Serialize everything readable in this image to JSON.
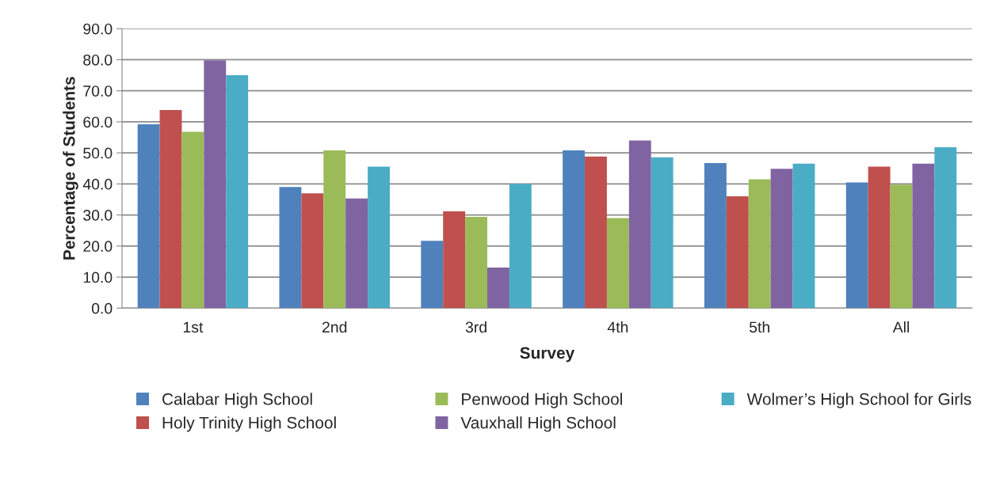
{
  "chart_data": {
    "type": "bar",
    "xlabel": "Survey",
    "ylabel": "Percentage of Students",
    "categories": [
      "1st",
      "2nd",
      "3rd",
      "4th",
      "5th",
      "All"
    ],
    "series": [
      {
        "name": "Calabar High School",
        "color": "#4f81bd",
        "values": [
          59.2,
          39.0,
          21.7,
          50.8,
          46.7,
          40.5
        ]
      },
      {
        "name": "Holy Trinity High School",
        "color": "#c0504d",
        "values": [
          63.8,
          37.0,
          31.2,
          48.8,
          36.0,
          45.6
        ]
      },
      {
        "name": "Penwood High School",
        "color": "#9bbb59",
        "values": [
          56.8,
          50.8,
          29.4,
          29.0,
          41.5,
          39.8
        ]
      },
      {
        "name": "Vauxhall High School",
        "color": "#8064a2",
        "values": [
          79.8,
          35.3,
          13.1,
          54.0,
          44.9,
          46.5
        ]
      },
      {
        "name": "Wolmer’s High School for Girls",
        "color": "#4bacc6",
        "values": [
          75.0,
          45.6,
          40.0,
          48.6,
          46.5,
          51.8
        ]
      }
    ],
    "ylim": [
      0,
      90
    ],
    "yticks": [
      {
        "value": 0,
        "label": "0.0"
      },
      {
        "value": 10,
        "label": "10.0"
      },
      {
        "value": 20,
        "label": "20.0"
      },
      {
        "value": 30,
        "label": "30.0"
      },
      {
        "value": 40,
        "label": "40.0"
      },
      {
        "value": 50,
        "label": "50.0"
      },
      {
        "value": 60,
        "label": "60.0"
      },
      {
        "value": 70,
        "label": "70.0"
      },
      {
        "value": 80,
        "label": "80.0"
      },
      {
        "value": 90,
        "label": "90.0"
      }
    ],
    "grid": "y",
    "legend": "bottom"
  }
}
